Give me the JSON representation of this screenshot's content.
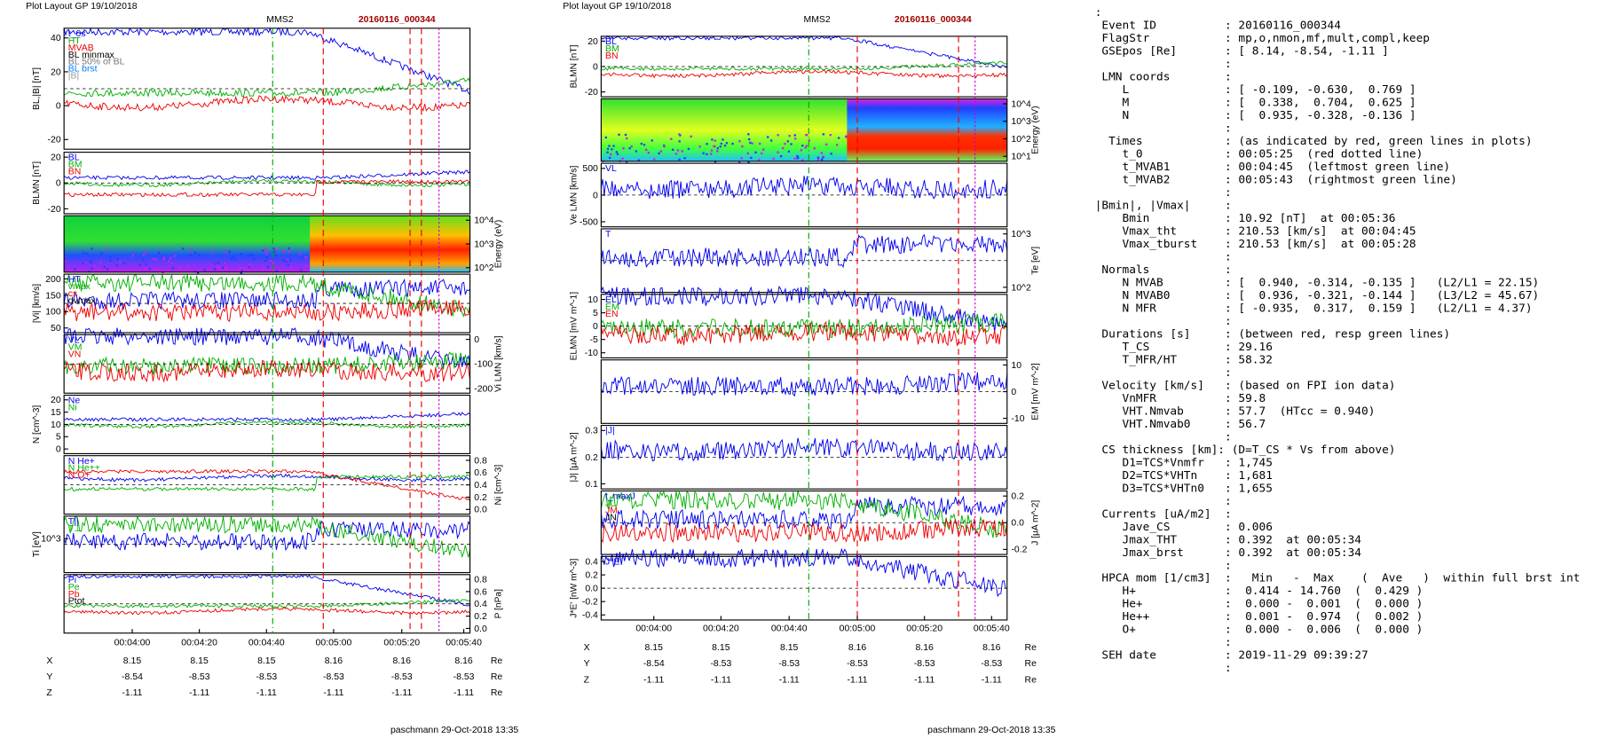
{
  "left": {
    "header": "Plot Layout GP 19/10/2018",
    "spacecraft": "MMS2",
    "event": "20160116_000344",
    "footer": "paschmann 29-Oct-2018 13:35",
    "panels": [
      {
        "ylabel": "BL,|B| [nT]",
        "ticks": [
          "40",
          "20",
          "0",
          "-20"
        ],
        "side": "left",
        "legend": [
          "t_0s",
          "HT",
          "MVAB",
          "BL minmax",
          "BL 50% of BL",
          "BL brst",
          "|B|"
        ]
      },
      {
        "ylabel": "BLMN [nT]",
        "ticks": [
          "20",
          "0",
          "-20"
        ],
        "side": "left",
        "legend": [
          "BL",
          "BM",
          "BN"
        ]
      },
      {
        "ylabel": "Energy (eV)",
        "ticks": [
          "10^4",
          "10^3",
          "10^2"
        ],
        "side": "right",
        "legend": []
      },
      {
        "ylabel": "|Vi| [km/s]",
        "ticks": [
          "200",
          "150",
          "100",
          "50"
        ],
        "side": "left",
        "legend": [
          "HT",
          "vmax",
          "cs",
          "dvmax"
        ]
      },
      {
        "ylabel": "Vi LMN [km/s]",
        "ticks": [
          "0",
          "-100",
          "-200"
        ],
        "side": "right",
        "legend": [
          "VL",
          "VM",
          "VN"
        ]
      },
      {
        "ylabel": "N [cm^-3]",
        "ticks": [
          "20",
          "15",
          "10",
          "5",
          "0"
        ],
        "side": "left",
        "legend": [
          "Ne",
          "Ni"
        ]
      },
      {
        "ylabel": "Ni [cm^-3]",
        "ticks": [
          "0.8",
          "0.6",
          "0.4",
          "0.2",
          "0.0"
        ],
        "side": "right",
        "legend": [
          "N He+",
          "N He++",
          "N O+"
        ]
      },
      {
        "ylabel": "Ti [eV]",
        "ticks": [
          "10^3"
        ],
        "side": "left",
        "legend": [
          "T||",
          "T⊥"
        ]
      },
      {
        "ylabel": "P [nPa]",
        "ticks": [
          "0.8",
          "0.6",
          "0.4",
          "0.2",
          "0.0"
        ],
        "side": "right",
        "legend": [
          "Pi",
          "Pe",
          "Pb",
          "Ptot"
        ]
      }
    ],
    "xticks": [
      "00:04:00",
      "00:04:20",
      "00:04:40",
      "00:05:00",
      "00:05:20",
      "00:05:40"
    ],
    "positions": [
      [
        "X",
        "8.15",
        "8.15",
        "8.15",
        "8.16",
        "8.16",
        "8.16",
        "Re"
      ],
      [
        "Y",
        "-8.54",
        "-8.53",
        "-8.53",
        "-8.53",
        "-8.53",
        "-8.53",
        "Re"
      ],
      [
        "Z",
        "-1.11",
        "-1.11",
        "-1.11",
        "-1.11",
        "-1.11",
        "-1.11",
        "Re"
      ]
    ]
  },
  "middle": {
    "header": "Plot layout GP 19/10/2018",
    "spacecraft": "MMS2",
    "event": "20160116_000344",
    "footer": "paschmann 29-Oct-2018 13:35",
    "panels": [
      {
        "ylabel": "BLMN [nT]",
        "ticks": [
          "20",
          "0",
          "-20"
        ],
        "side": "left",
        "legend": [
          "BL",
          "BM",
          "BN"
        ]
      },
      {
        "ylabel": "Energy (eV)",
        "ticks": [
          "10^4",
          "10^3",
          "10^2",
          "10^1"
        ],
        "side": "right",
        "legend": []
      },
      {
        "ylabel": "Ve LMN [km/s]",
        "ticks": [
          "500",
          "0",
          "-500"
        ],
        "side": "left",
        "legend": [
          "VL"
        ]
      },
      {
        "ylabel": "Te [eV]",
        "ticks": [
          "10^3",
          "10^2"
        ],
        "side": "right",
        "legend": [
          "T"
        ]
      },
      {
        "ylabel": "ELMN [mV m^-1]",
        "ticks": [
          "10",
          "5",
          "0",
          "-5",
          "-10"
        ],
        "side": "left",
        "legend": [
          "EL",
          "EM",
          "EN"
        ]
      },
      {
        "ylabel": "EM [mV m^-2]",
        "ticks": [
          "10",
          "0",
          "-10"
        ],
        "side": "right",
        "legend": []
      },
      {
        "ylabel": "|J| [μA m^-2]",
        "ticks": [
          "0.3",
          "0.2",
          "0.1"
        ],
        "side": "left",
        "legend": [
          "|J|"
        ]
      },
      {
        "ylabel": "J [μA m^-2]",
        "ticks": [
          "0.2",
          "0.0",
          "-0.2"
        ],
        "side": "right",
        "legend": [
          "t_maxJ",
          "JL",
          "JM",
          "JN"
        ]
      },
      {
        "ylabel": "J*E' [nW m^-3]",
        "ticks": [
          "0.4",
          "0.2",
          "0.0",
          "-0.2",
          "-0.4"
        ],
        "side": "left",
        "legend": [
          "J*E'"
        ]
      }
    ],
    "xticks": [
      "00:04:00",
      "00:04:20",
      "00:04:40",
      "00:05:00",
      "00:05:20",
      "00:05:40"
    ],
    "positions": [
      [
        "X",
        "8.15",
        "8.15",
        "8.15",
        "8.16",
        "8.16",
        "8.16",
        "Re"
      ],
      [
        "Y",
        "-8.54",
        "-8.53",
        "-8.53",
        "-8.53",
        "-8.53",
        "-8.53",
        "Re"
      ],
      [
        "Z",
        "-1.11",
        "-1.11",
        "-1.11",
        "-1.11",
        "-1.11",
        "-1.11",
        "Re"
      ]
    ]
  },
  "info": {
    "lines": [
      ":",
      " Event ID          : 20160116_000344",
      " FlagStr           : mp,o,nmon,mf,mult,compl,keep",
      " GSEpos [Re]       : [ 8.14, -8.54, -1.11 ]",
      "                   :",
      " LMN coords        :",
      "    L              : [ -0.109, -0.630,  0.769 ]",
      "    M              : [  0.338,  0.704,  0.625 ]",
      "    N              : [  0.935, -0.328, -0.136 ]",
      "                   :",
      "  Times            : (as indicated by red, green lines in plots)",
      "    t_0            : 00:05:25  (red dotted line)",
      "    t_MVAB1        : 00:04:45  (leftmost green line)",
      "    t_MVAB2        : 00:05:43  (rightmost green line)",
      "                   :",
      "|Bmin|, |Vmax|     :",
      "    Bmin           : 10.92 [nT]  at 00:05:36",
      "    Vmax_tht       : 210.53 [km/s]  at 00:04:45",
      "    Vmax_tburst    : 210.53 [km/s]  at 00:05:28",
      "                   :",
      " Normals           :",
      "    N MVAB         : [  0.940, -0.314, -0.135 ]   (L2/L1 = 22.15)",
      "    N MVAB0        : [  0.936, -0.321, -0.144 ]   (L3/L2 = 45.67)",
      "    N MFR          : [ -0.935,  0.317,  0.159 ]   (L2/L1 = 4.37)",
      "                   :",
      " Durations [s]     : (between red, resp green lines)",
      "    T_CS           : 29.16",
      "    T_MFR/HT       : 58.32",
      "                   :",
      " Velocity [km/s]   : (based on FPI ion data)",
      "    VnMFR          : 59.8",
      "    VHT.Nmvab      : 57.7  (HTcc = 0.940)",
      "    VHT.Nmvab0     : 56.7",
      "                   :",
      " CS thickness [km]: (D=T_CS * Vs from above)",
      "    D1=TCS*Vnmfr   : 1,745",
      "    D2=TCS*VHTn    : 1,681",
      "    D3=TCS*VHTn0   : 1,655",
      "                   :",
      " Currents [uA/m2]  :",
      "    Jave_CS        : 0.006",
      "    Jmax_THT       : 0.392  at 00:05:34",
      "    Jmax_brst      : 0.392  at 00:05:34",
      "                   :",
      " HPCA mom [1/cm3]  :   Min   -  Max    (  Ave   )  within full brst int",
      "    H+             :  0.414 - 14.760  (  0.429 )",
      "    He+            :  0.000 -  0.001  (  0.000 )",
      "    He++           :  0.001 -  0.974  (  0.002 )",
      "    O+             :  0.000 -  0.006  (  0.000 )",
      "                   :",
      " SEH date          : 2019-11-29 09:39:27",
      "                   :"
    ]
  }
}
